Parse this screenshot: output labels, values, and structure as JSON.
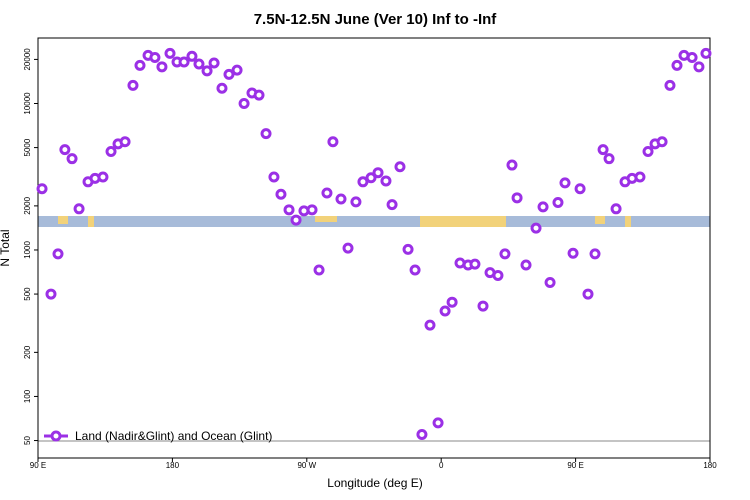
{
  "chart_data": {
    "type": "scatter",
    "title": "7.5N-12.5N June (Ver 10)   Inf to -Inf",
    "x_label": "Longitude (deg E)",
    "y_label": "N Total",
    "log_y": true,
    "xlim": [
      90,
      540
    ],
    "ylim": [
      38,
      28000
    ],
    "xticks": [
      {
        "value": 90,
        "label": "90 E"
      },
      {
        "value": 180,
        "label": "180"
      },
      {
        "value": 270,
        "label": "90 W"
      },
      {
        "value": 360,
        "label": "0"
      },
      {
        "value": 450,
        "label": "90 E"
      },
      {
        "value": 540,
        "label": "180"
      }
    ],
    "yticks": [
      50,
      100,
      200,
      500,
      1000,
      2000,
      5000,
      10000,
      20000
    ],
    "legend_position": "lower left",
    "series": [
      {
        "name": "Land (Nadir&Glint) and Ocean (Glint)",
        "color": "#9b30e6",
        "x": [
          92.7,
          98.7,
          103.4,
          108,
          112.8,
          117.5,
          123.5,
          128.2,
          133.5,
          138.9,
          143.6,
          148.3,
          153.6,
          158.3,
          163.7,
          168.3,
          173,
          178.4,
          183.1,
          187.8,
          193.1,
          197.8,
          203.2,
          207.9,
          213.2,
          217.9,
          223.3,
          228,
          233.3,
          238,
          242.7,
          248,
          252.7,
          258.1,
          262.8,
          268.1,
          273.5,
          278.2,
          283.5,
          287.5,
          292.9,
          297.6,
          302.9,
          307.6,
          313,
          317.7,
          323,
          327.1,
          332.4,
          337.8,
          342.5,
          347.1,
          352.5,
          357.9,
          362.6,
          367.3,
          372.6,
          378,
          382.6,
          388,
          392.7,
          398,
          402.7,
          407.4,
          410.8,
          416.8,
          423.5,
          428.2,
          432.9,
          438.2,
          442.9,
          448.3,
          453,
          458.3,
          463,
          468.4,
          472.4,
          477.1,
          483.1,
          487.8,
          493.1,
          498.5,
          503.2,
          507.9,
          513.2,
          517.9,
          522.6,
          528,
          532.6,
          537.3
        ],
        "values": [
          2620,
          500,
          940,
          4840,
          4200,
          1910,
          2920,
          3080,
          3150,
          4700,
          5300,
          5480,
          13300,
          18200,
          21300,
          20600,
          17800,
          22000,
          19200,
          19200,
          21000,
          18600,
          16700,
          18900,
          12700,
          15800,
          16900,
          10000,
          11800,
          11400,
          6230,
          3150,
          2400,
          1880,
          1600,
          1850,
          1880,
          730,
          2450,
          5480,
          2230,
          1030,
          2130,
          2920,
          3110,
          3370,
          2960,
          2040,
          3700,
          1010,
          730,
          55,
          307,
          66,
          383,
          440,
          815,
          790,
          800,
          414,
          700,
          670,
          940,
          3800,
          2270,
          790,
          1410,
          1970,
          600,
          2110,
          2870,
          950,
          2620,
          500,
          940,
          4840,
          4200,
          1910,
          2920,
          3080,
          3150,
          4700,
          5300,
          5480,
          13300,
          18200,
          21300,
          20600,
          17800,
          22000
        ]
      }
    ]
  }
}
